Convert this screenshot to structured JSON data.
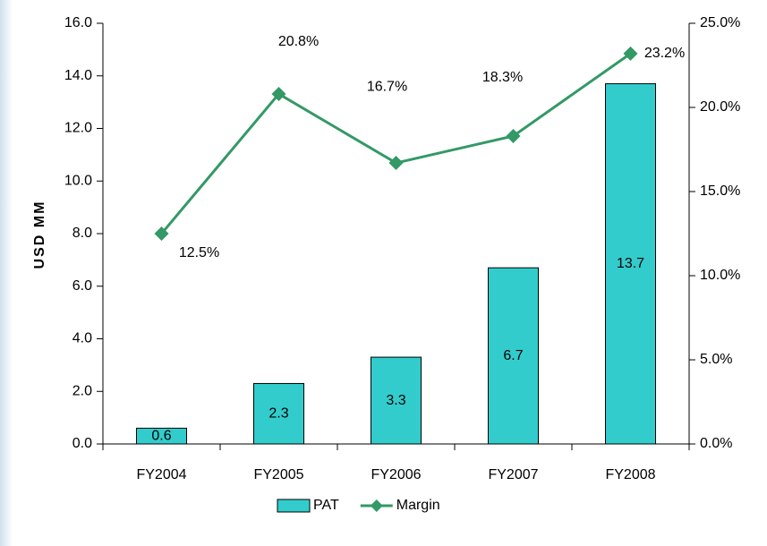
{
  "chart_data": {
    "type": "bar",
    "y_label": "USD MM",
    "categories": [
      "FY2004",
      "FY2005",
      "FY2006",
      "FY2007",
      "FY2008"
    ],
    "series": [
      {
        "name": "PAT",
        "type": "bar",
        "color": "#33cccc",
        "values": [
          0.6,
          2.3,
          3.3,
          6.7,
          13.7
        ]
      },
      {
        "name": "Margin",
        "type": "line",
        "axis": "y2",
        "color": "#339966",
        "values": [
          12.5,
          20.8,
          16.7,
          18.3,
          23.2
        ],
        "value_labels": [
          "12.5%",
          "20.8%",
          "16.7%",
          "18.3%",
          "23.2%"
        ]
      }
    ],
    "ylim": [
      0,
      16
    ],
    "yticks": [
      {
        "value": 0,
        "label": "0.0"
      },
      {
        "value": 2,
        "label": "2.0"
      },
      {
        "value": 4,
        "label": "4.0"
      },
      {
        "value": 6,
        "label": "6.0"
      },
      {
        "value": 8,
        "label": "8.0"
      },
      {
        "value": 10,
        "label": "10.0"
      },
      {
        "value": 12,
        "label": "12.0"
      },
      {
        "value": 14,
        "label": "14.0"
      },
      {
        "value": 16,
        "label": "16.0"
      }
    ],
    "y2lim": [
      0,
      25
    ],
    "y2ticks": [
      {
        "value": 0,
        "label": "0.0%"
      },
      {
        "value": 5,
        "label": "5.0%"
      },
      {
        "value": 10,
        "label": "10.0%"
      },
      {
        "value": 15,
        "label": "15.0%"
      },
      {
        "value": 20,
        "label": "20.0%"
      },
      {
        "value": 25,
        "label": "25.0%"
      }
    ],
    "grid": false,
    "legend": "bottom"
  }
}
